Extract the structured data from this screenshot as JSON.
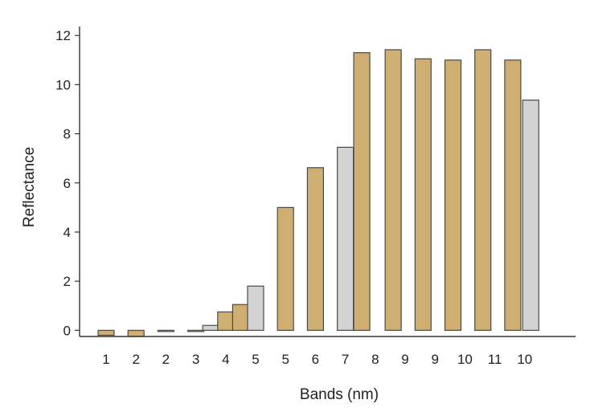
{
  "chart_data": {
    "type": "bar",
    "xlabel": "Bands (nm)",
    "ylabel": "Reflectance",
    "ylim": [
      -0.25,
      12.3
    ],
    "yticks": [
      0,
      2,
      4,
      6,
      8,
      10,
      12
    ],
    "xtick_labels": [
      "1",
      "2",
      "2",
      "3",
      "4",
      "5",
      "5",
      "6",
      "7",
      "8",
      "9",
      "9",
      "10",
      "11",
      "10"
    ],
    "grid": false,
    "legend": "none",
    "colors": {
      "tan": "#cfae72",
      "gray": "#d3d3d3",
      "outline": "#4a4a4a",
      "axis": "#333333"
    },
    "bars": [
      {
        "slot": 0,
        "value": -0.2,
        "color": "tan"
      },
      {
        "slot": 1,
        "value": -0.25,
        "color": "tan"
      },
      {
        "slot": 2,
        "value": -0.03,
        "color": "tan"
      },
      {
        "slot": 3,
        "value": -0.02,
        "color": "tan"
      },
      {
        "slot": 3.5,
        "value": 0.2,
        "color": "gray"
      },
      {
        "slot": 4,
        "value": 0.75,
        "color": "tan"
      },
      {
        "slot": 4.5,
        "value": 1.05,
        "color": "tan"
      },
      {
        "slot": 5,
        "value": 1.8,
        "color": "gray"
      },
      {
        "slot": 6,
        "value": 5.0,
        "color": "tan"
      },
      {
        "slot": 7,
        "value": 6.62,
        "color": "tan"
      },
      {
        "slot": 8,
        "value": 7.45,
        "color": "gray"
      },
      {
        "slot": 8.55,
        "value": 11.3,
        "color": "tan"
      },
      {
        "slot": 9.6,
        "value": 11.42,
        "color": "tan"
      },
      {
        "slot": 10.6,
        "value": 11.05,
        "color": "tan"
      },
      {
        "slot": 11.6,
        "value": 11.0,
        "color": "tan"
      },
      {
        "slot": 12.6,
        "value": 11.42,
        "color": "tan"
      },
      {
        "slot": 13.6,
        "value": 11.0,
        "color": "tan"
      },
      {
        "slot": 14.2,
        "value": 9.37,
        "color": "gray"
      }
    ]
  }
}
